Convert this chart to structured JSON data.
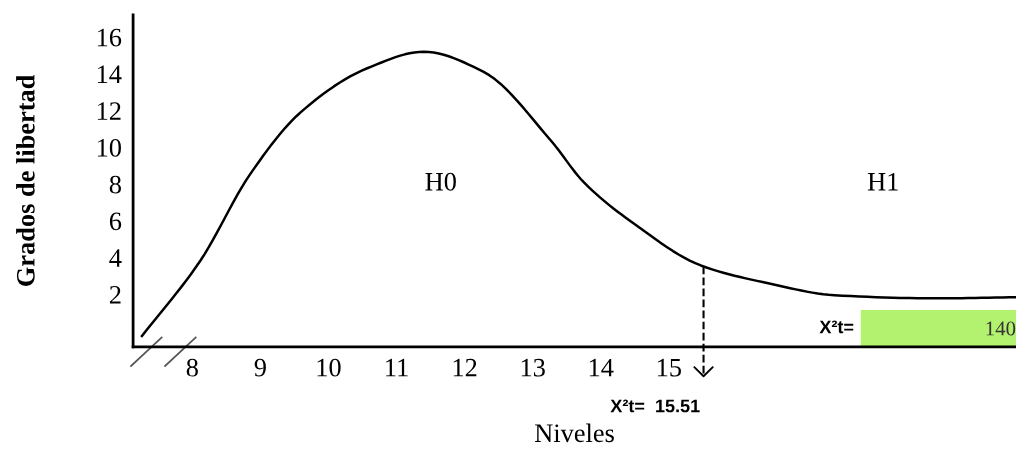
{
  "chart_data": {
    "type": "line",
    "xlabel": "Niveles",
    "ylabel": "Grados de libertad",
    "x": [
      7.26,
      8.12,
      8.85,
      9.59,
      10.57,
      11.4,
      12.28,
      13.26,
      13.75,
      14.49,
      15.47,
      16.46,
      17.43,
      18.9,
      20.1
    ],
    "series": [
      {
        "color": "#000000",
        "values": [
          -0.27,
          3.84,
          8.54,
          11.9,
          14.3,
          15.2,
          14.1,
          10.4,
          8.1,
          5.84,
          3.57,
          2.6,
          1.95,
          1.78,
          1.84
        ]
      }
    ],
    "xlim": [
      7.13,
      20.1
    ],
    "ylim": [
      -0.86,
      17.2
    ],
    "xticks": [
      8,
      9,
      10,
      11,
      12,
      13,
      14,
      15
    ],
    "yticks": [
      2,
      4,
      6,
      8,
      10,
      12,
      14,
      16
    ],
    "bands": [
      {
        "axis": "x",
        "from": 17.82,
        "to": 20.1,
        "label": "140",
        "color": "#b2f26e"
      }
    ],
    "ref_lines": [
      {
        "axis": "x",
        "value": 15.51,
        "label": "X²t=  15.51",
        "line_style": "dashed",
        "color": "#000000"
      }
    ],
    "annotations": [
      "H0",
      "H1",
      "X²t="
    ],
    "grid": false,
    "legend": false,
    "marker": "none",
    "line_style": "solid"
  }
}
